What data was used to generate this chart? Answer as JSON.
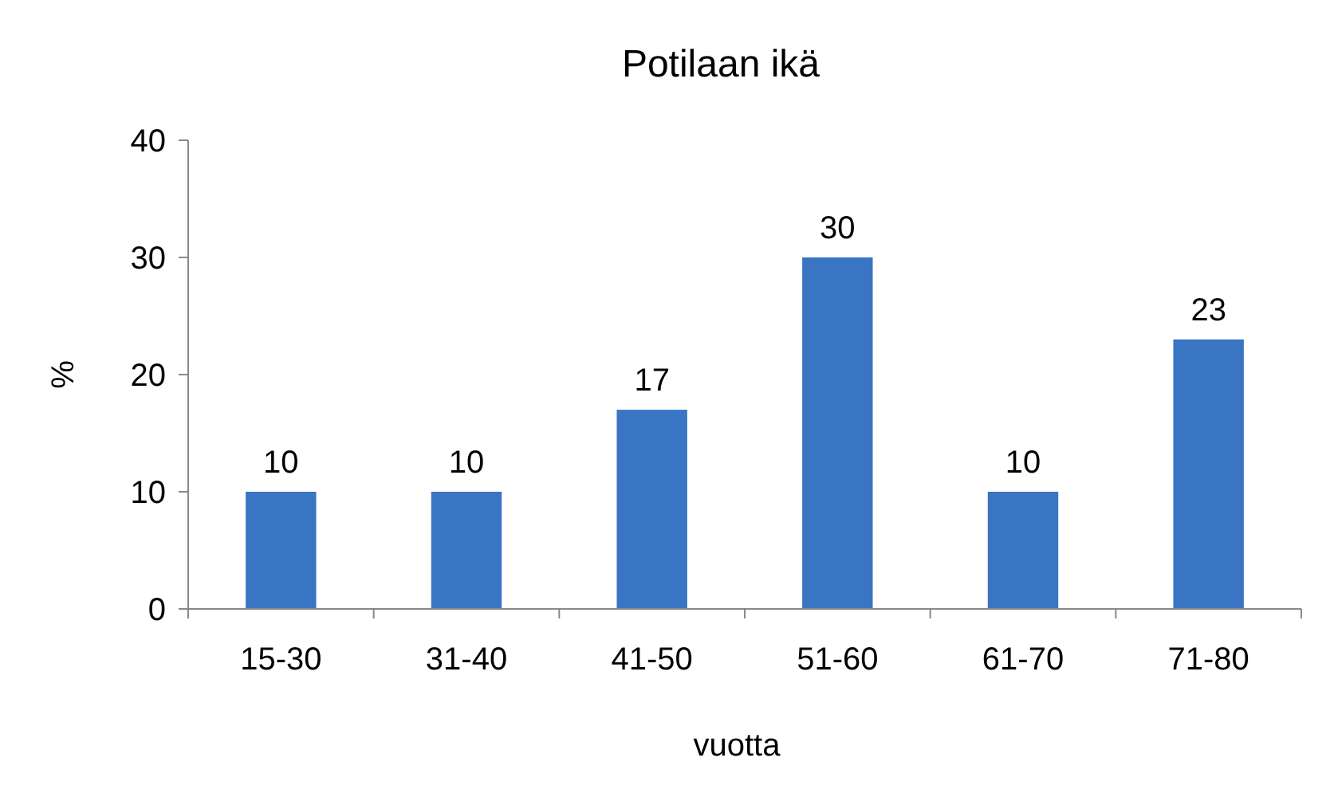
{
  "chart_data": {
    "type": "bar",
    "title": "Potilaan ikä",
    "xlabel": "vuotta",
    "ylabel": "%",
    "categories": [
      "15-30",
      "31-40",
      "41-50",
      "51-60",
      "61-70",
      "71-80"
    ],
    "values": [
      10,
      10,
      17,
      30,
      10,
      23
    ],
    "color": "#3a75c4",
    "ylim": [
      0,
      40
    ],
    "yticks": [
      0,
      10,
      20,
      30,
      40
    ],
    "grid": false,
    "data_labels": true
  }
}
